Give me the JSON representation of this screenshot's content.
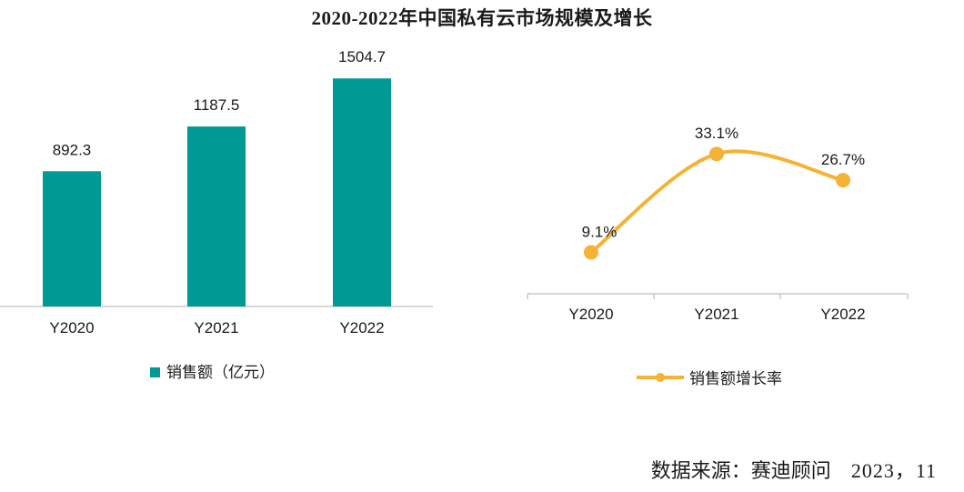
{
  "title": "2020-2022年中国私有云市场规模及增长",
  "source": {
    "label": "数据来源：赛迪顾问",
    "date": "2023，11"
  },
  "colors": {
    "bar": "#009994",
    "line": "#f5b335",
    "axis": "#c8c8c8",
    "text": "#1a1a1a"
  },
  "chart_data": [
    {
      "type": "bar",
      "title": "",
      "categories": [
        "Y2020",
        "Y2021",
        "Y2022"
      ],
      "series": [
        {
          "name": "销售额（亿元）",
          "values": [
            892.3,
            1187.5,
            1504.7
          ]
        }
      ],
      "value_labels": [
        "892.3",
        "1187.5",
        "1504.7"
      ],
      "ylim": [
        0,
        1800
      ],
      "legend": "bottom",
      "grid": false
    },
    {
      "type": "line",
      "title": "",
      "categories": [
        "Y2020",
        "Y2021",
        "Y2022"
      ],
      "series": [
        {
          "name": "销售额增长率",
          "values": [
            9.1,
            33.1,
            26.7
          ]
        }
      ],
      "value_labels": [
        "9.1%",
        "33.1%",
        "26.7%"
      ],
      "ylim": [
        -1,
        50
      ],
      "legend": "bottom",
      "grid": false
    }
  ]
}
